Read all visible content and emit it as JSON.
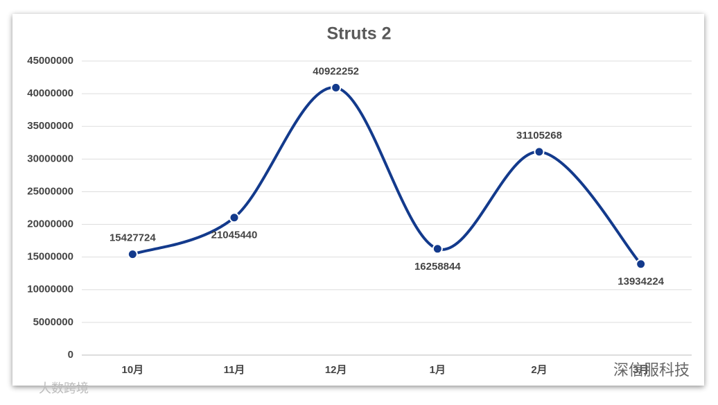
{
  "chart_data": {
    "type": "line",
    "title": "Struts 2",
    "categories": [
      "10月",
      "11月",
      "12月",
      "1月",
      "2月",
      "3月"
    ],
    "series": [
      {
        "name": "Struts 2",
        "color": "#133a8c",
        "values": [
          15427724,
          21045440,
          40922252,
          16258844,
          31105268,
          13934224
        ]
      }
    ],
    "ylim": [
      0,
      45000000
    ],
    "yticks": [
      0,
      5000000,
      10000000,
      15000000,
      20000000,
      25000000,
      30000000,
      35000000,
      40000000,
      45000000
    ],
    "grid": true,
    "smooth": true
  },
  "watermarks": [
    "深信服科技",
    "大数跨境"
  ]
}
